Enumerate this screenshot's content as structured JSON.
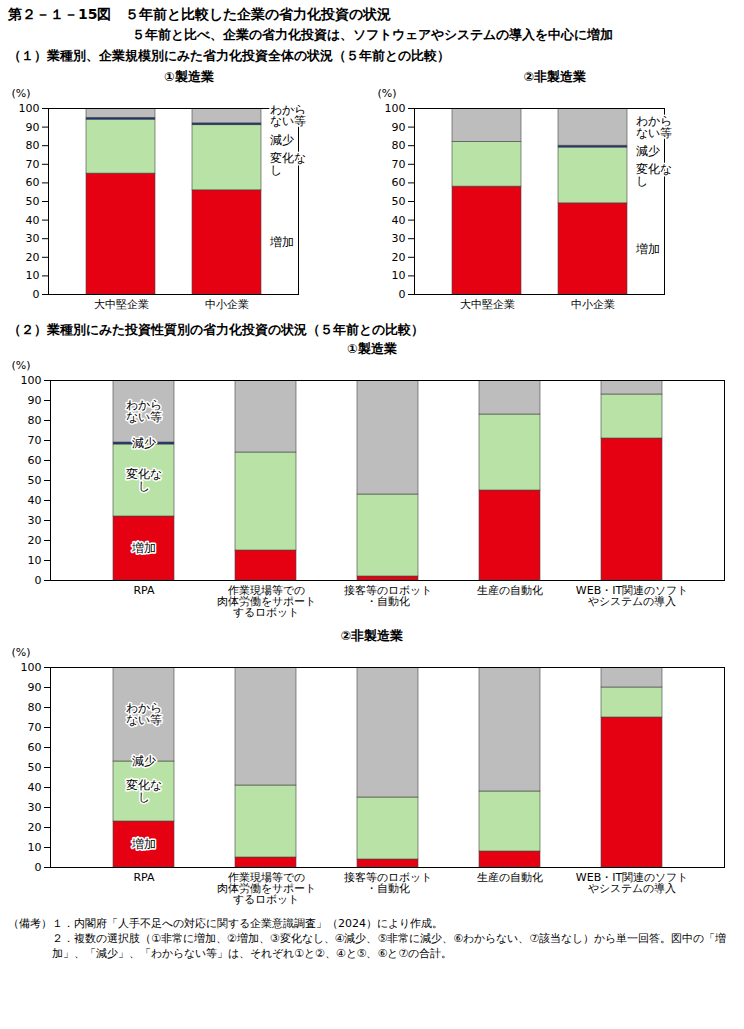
{
  "title": "第２－１－15図　５年前と比較した企業の省力化投資の状況",
  "subtitle": "５年前と比べ、企業の省力化投資は、ソフトウェアやシステムの導入を中心に増加",
  "section_headings": [
    "（１）業種別、企業規模別にみた省力化投資全体の状況（５年前との比較）",
    "（２）業種別にみた投資性質別の省力化投資の状況（５年前との比較）"
  ],
  "notes_label": "（備考）",
  "notes": [
    "１．内閣府「人手不足への対応に関する企業意識調査」（2024）により作成。",
    "２．複数の選択肢（①非常に増加、②増加、③変化なし、④減少、⑤非常に減少、⑥わからない、⑦該当なし）から単一回答。図中の「増加」、「減少」、「わからない等」は、それぞれ①と②、④と⑤、⑥と⑦の合計。"
  ],
  "chart_data": [
    {
      "type": "bar",
      "title": "①製造業",
      "ylabel": "(%)",
      "stacked": true,
      "categories": [
        "大中堅企業",
        "中小企業"
      ],
      "series": [
        {
          "name": "増加",
          "color": "#e50012",
          "values": [
            65,
            56
          ]
        },
        {
          "name": "変化なし",
          "color": "#b9e3a6",
          "values": [
            29,
            35
          ]
        },
        {
          "name": "減少",
          "color": "#1c2f8c",
          "values": [
            1,
            1
          ]
        },
        {
          "name": "わからない等",
          "color": "#bdbdbd",
          "values": [
            5,
            8
          ]
        }
      ],
      "ylim": [
        0,
        100
      ],
      "yticks": [
        0,
        10,
        20,
        30,
        40,
        50,
        60,
        70,
        80,
        90,
        100
      ]
    },
    {
      "type": "bar",
      "title": "②非製造業",
      "ylabel": "(%)",
      "stacked": true,
      "categories": [
        "大中堅企業",
        "中小企業"
      ],
      "series": [
        {
          "name": "増加",
          "color": "#e50012",
          "values": [
            58,
            49
          ]
        },
        {
          "name": "変化なし",
          "color": "#b9e3a6",
          "values": [
            24,
            30
          ]
        },
        {
          "name": "減少",
          "color": "#1c2f8c",
          "values": [
            0,
            1
          ]
        },
        {
          "name": "わからない等",
          "color": "#bdbdbd",
          "values": [
            18,
            20
          ]
        }
      ],
      "ylim": [
        0,
        100
      ],
      "yticks": [
        0,
        10,
        20,
        30,
        40,
        50,
        60,
        70,
        80,
        90,
        100
      ]
    },
    {
      "type": "bar",
      "title": "①製造業",
      "ylabel": "(%)",
      "stacked": true,
      "categories": [
        "RPA",
        "作業現場等での\n肉体労働をサポート\nするロボット",
        "接客等のロボット\n・自動化",
        "生産の自動化",
        "WEB・IT関連のソフト\nやシステムの導入"
      ],
      "series": [
        {
          "name": "増加",
          "color": "#e50012",
          "values": [
            32,
            15,
            2,
            45,
            71
          ]
        },
        {
          "name": "変化なし",
          "color": "#b9e3a6",
          "values": [
            36,
            49,
            41,
            38,
            22
          ]
        },
        {
          "name": "減少",
          "color": "#1c2f8c",
          "values": [
            1,
            0,
            0,
            0,
            0
          ]
        },
        {
          "name": "わからない等",
          "color": "#bdbdbd",
          "values": [
            31,
            36,
            57,
            17,
            7
          ]
        }
      ],
      "ylim": [
        0,
        100
      ],
      "yticks": [
        0,
        10,
        20,
        30,
        40,
        50,
        60,
        70,
        80,
        90,
        100
      ]
    },
    {
      "type": "bar",
      "title": "②非製造業",
      "ylabel": "(%)",
      "stacked": true,
      "categories": [
        "RPA",
        "作業現場等での\n肉体労働をサポート\nするロボット",
        "接客等のロボット\n・自動化",
        "生産の自動化",
        "WEB・IT関連のソフト\nやシステムの導入"
      ],
      "series": [
        {
          "name": "増加",
          "color": "#e50012",
          "values": [
            23,
            5,
            4,
            8,
            75
          ]
        },
        {
          "name": "変化なし",
          "color": "#b9e3a6",
          "values": [
            30,
            36,
            31,
            30,
            15
          ]
        },
        {
          "name": "減少",
          "color": "#1c2f8c",
          "values": [
            0,
            0,
            0,
            0,
            0
          ]
        },
        {
          "name": "わからない等",
          "color": "#bdbdbd",
          "values": [
            47,
            59,
            65,
            62,
            10
          ]
        }
      ],
      "ylim": [
        0,
        100
      ],
      "yticks": [
        0,
        10,
        20,
        30,
        40,
        50,
        60,
        70,
        80,
        90,
        100
      ]
    }
  ]
}
